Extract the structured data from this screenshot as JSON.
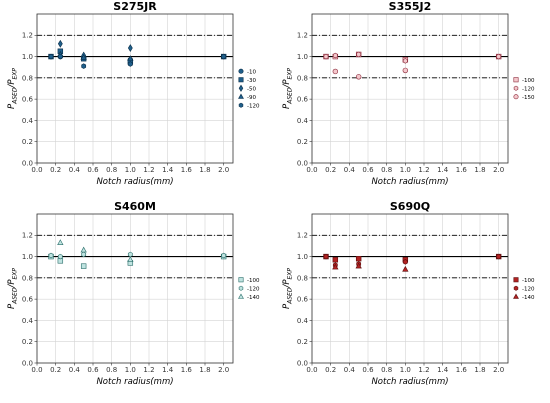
{
  "chart_data": [
    {
      "type": "scatter",
      "title": "S275JR",
      "xlabel": "Notch radius(mm)",
      "ylabel_main": "P",
      "ylabel_sub1": "ASED",
      "ylabel_sep": "/P",
      "ylabel_sub2": "EXP",
      "xlim": [
        0,
        2.1
      ],
      "ylim": [
        0,
        1.4
      ],
      "xticks": [
        "0.0",
        "0.2",
        "0.4",
        "0.6",
        "0.8",
        "1.0",
        "1.2",
        "1.4",
        "1.6",
        "1.8",
        "2.0"
      ],
      "yticks": [
        "0.0",
        "0.2",
        "0.4",
        "0.6",
        "0.8",
        "1.0",
        "1.2"
      ],
      "ref_solid": 1.0,
      "ref_dashdot": [
        0.8,
        1.2
      ],
      "grid": true,
      "legend_position": "right",
      "color": "#1f5f8b",
      "stroke": "#0b2f4a",
      "series": [
        {
          "name": "-10",
          "marker": "circle",
          "x": [
            0.15,
            0.25,
            0.5,
            1.0,
            2.0
          ],
          "y": [
            1.0,
            1.0,
            0.99,
            0.97,
            1.0
          ]
        },
        {
          "name": "-30",
          "marker": "square",
          "x": [
            0.15,
            0.25,
            0.5,
            1.0,
            2.0
          ],
          "y": [
            1.0,
            1.05,
            0.98,
            0.95,
            1.0
          ]
        },
        {
          "name": "-50",
          "marker": "diamond",
          "x": [
            0.25,
            0.5,
            1.0
          ],
          "y": [
            1.12,
            1.01,
            1.08
          ]
        },
        {
          "name": "-90",
          "marker": "triangle",
          "x": [
            0.25,
            0.5,
            1.0
          ],
          "y": [
            1.02,
            0.99,
            0.98
          ]
        },
        {
          "name": "-120",
          "marker": "hexagon",
          "x": [
            0.15,
            0.25,
            0.5,
            1.0,
            2.0
          ],
          "y": [
            1.0,
            1.0,
            0.91,
            0.93,
            1.0
          ]
        }
      ]
    },
    {
      "type": "scatter",
      "title": "S355J2",
      "xlabel": "Notch radius(mm)",
      "ylabel_main": "P",
      "ylabel_sub1": "ASED",
      "ylabel_sep": "/P",
      "ylabel_sub2": "EXP",
      "xlim": [
        0,
        2.1
      ],
      "ylim": [
        0,
        1.4
      ],
      "xticks": [
        "0.0",
        "0.2",
        "0.4",
        "0.6",
        "0.8",
        "1.0",
        "1.2",
        "1.4",
        "1.6",
        "1.8",
        "2.0"
      ],
      "yticks": [
        "0.0",
        "0.2",
        "0.4",
        "0.6",
        "0.8",
        "1.0",
        "1.2"
      ],
      "ref_solid": 1.0,
      "ref_dashdot": [
        0.8,
        1.2
      ],
      "grid": true,
      "legend_position": "right",
      "color": "#f4c7cc",
      "stroke": "#8b2a3a",
      "series": [
        {
          "name": "-100",
          "marker": "square",
          "x": [
            0.15,
            0.25,
            0.5,
            1.0,
            2.0
          ],
          "y": [
            1.0,
            1.0,
            1.02,
            0.97,
            1.0
          ]
        },
        {
          "name": "-120",
          "marker": "hexagon",
          "x": [
            0.15,
            0.25,
            0.5,
            1.0,
            2.0
          ],
          "y": [
            1.0,
            1.01,
            1.02,
            0.96,
            1.0
          ]
        },
        {
          "name": "-150",
          "marker": "circle",
          "x": [
            0.25,
            0.5,
            1.0
          ],
          "y": [
            0.86,
            0.81,
            0.87
          ]
        }
      ]
    },
    {
      "type": "scatter",
      "title": "S460M",
      "xlabel": "Notch radius(mm)",
      "ylabel_main": "P",
      "ylabel_sub1": "ASED",
      "ylabel_sep": "/P",
      "ylabel_sub2": "EXP",
      "xlim": [
        0,
        2.1
      ],
      "ylim": [
        0,
        1.4
      ],
      "xticks": [
        "0.0",
        "0.2",
        "0.4",
        "0.6",
        "0.8",
        "1.0",
        "1.2",
        "1.4",
        "1.6",
        "1.8",
        "2.0"
      ],
      "yticks": [
        "0.0",
        "0.2",
        "0.4",
        "0.6",
        "0.8",
        "1.0",
        "1.2"
      ],
      "ref_solid": 1.0,
      "ref_dashdot": [
        0.8,
        1.2
      ],
      "grid": true,
      "legend_position": "right",
      "color": "#bfe3e0",
      "stroke": "#2b6e6a",
      "series": [
        {
          "name": "-100",
          "marker": "square",
          "x": [
            0.15,
            0.25,
            0.5,
            1.0,
            2.0
          ],
          "y": [
            1.0,
            0.96,
            0.91,
            0.94,
            1.0
          ]
        },
        {
          "name": "-120",
          "marker": "hexagon",
          "x": [
            0.15,
            0.25,
            0.5,
            1.0,
            2.0
          ],
          "y": [
            1.01,
            1.0,
            1.02,
            1.02,
            1.01
          ]
        },
        {
          "name": "-140",
          "marker": "triangle",
          "x": [
            0.25,
            0.5,
            1.0
          ],
          "y": [
            1.13,
            1.06,
            0.97
          ]
        }
      ]
    },
    {
      "type": "scatter",
      "title": "S690Q",
      "xlabel": "Notch radius(mm)",
      "ylabel_main": "P",
      "ylabel_sub1": "ASED",
      "ylabel_sep": "/P",
      "ylabel_sub2": "EXP",
      "xlim": [
        0,
        2.1
      ],
      "ylim": [
        0,
        1.4
      ],
      "xticks": [
        "0.0",
        "0.2",
        "0.4",
        "0.6",
        "0.8",
        "1.0",
        "1.2",
        "1.4",
        "1.6",
        "1.8",
        "2.0"
      ],
      "yticks": [
        "0.0",
        "0.2",
        "0.4",
        "0.6",
        "0.8",
        "1.0",
        "1.2"
      ],
      "ref_solid": 1.0,
      "ref_dashdot": [
        0.8,
        1.2
      ],
      "grid": true,
      "legend_position": "right",
      "color": "#b22222",
      "stroke": "#5a0d0d",
      "series": [
        {
          "name": "-100",
          "marker": "square",
          "x": [
            0.15,
            0.25,
            0.5,
            1.0,
            2.0
          ],
          "y": [
            1.0,
            0.97,
            0.98,
            0.97,
            1.0
          ]
        },
        {
          "name": "-120",
          "marker": "hexagon",
          "x": [
            0.15,
            0.25,
            0.5,
            1.0,
            2.0
          ],
          "y": [
            1.0,
            0.92,
            0.93,
            0.95,
            1.0
          ]
        },
        {
          "name": "-140",
          "marker": "triangle",
          "x": [
            0.25,
            0.5,
            1.0
          ],
          "y": [
            0.9,
            0.91,
            0.88
          ]
        }
      ]
    }
  ]
}
